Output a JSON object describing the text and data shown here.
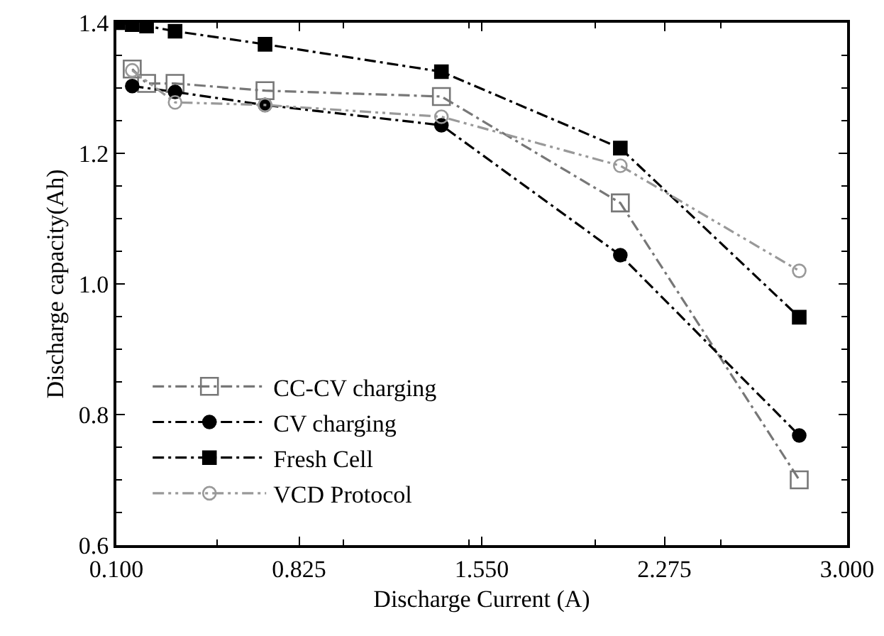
{
  "chart_data": {
    "type": "line",
    "xlabel": "Discharge Current (A)",
    "ylabel": "Discharge capacity(Ah)",
    "xlim": [
      0.1,
      3.0
    ],
    "xticks": [
      {
        "value": 0.1,
        "label": "0.100"
      },
      {
        "value": 0.825,
        "label": "0.825"
      },
      {
        "value": 1.55,
        "label": "1.550"
      },
      {
        "value": 2.275,
        "label": "2.275"
      },
      {
        "value": 3.0,
        "label": "3.000"
      }
    ],
    "ylim": [
      0.6,
      1.4
    ],
    "yticks": [
      0.6,
      0.8,
      {
        "value": 1.0,
        "label": "1.0"
      },
      1.2,
      1.4
    ],
    "grid": false,
    "legend": "bottom left",
    "series": [
      {
        "name": "CC-CV charging",
        "color": "#777777",
        "marker": "square-open",
        "line_style": "dashdot",
        "x": [
          0.163,
          0.22,
          0.333,
          0.69,
          1.39,
          2.1,
          2.81
        ],
        "values": [
          1.329,
          1.307,
          1.307,
          1.296,
          1.287,
          1.124,
          0.7
        ]
      },
      {
        "name": "CV charging",
        "color": "#000000",
        "marker": "circle",
        "line_style": "dashdot",
        "x": [
          0.163,
          0.333,
          0.69,
          1.39,
          2.1,
          2.81
        ],
        "values": [
          1.303,
          1.294,
          1.274,
          1.243,
          1.044,
          0.768
        ]
      },
      {
        "name": "Fresh Cell",
        "color": "#000000",
        "marker": "square",
        "line_style": "dashdot",
        "x": [
          0.105,
          0.163,
          0.22,
          0.333,
          0.69,
          1.39,
          2.1,
          2.81
        ],
        "values": [
          1.4,
          1.397,
          1.395,
          1.387,
          1.367,
          1.325,
          1.208,
          0.949
        ]
      },
      {
        "name": "VCD Protocol",
        "color": "#999999",
        "marker": "circle-open",
        "line_style": "dashdotdot",
        "x": [
          0.163,
          0.333,
          0.69,
          1.39,
          2.1,
          2.81
        ],
        "values": [
          1.327,
          1.278,
          1.274,
          1.256,
          1.181,
          1.02
        ]
      }
    ]
  }
}
